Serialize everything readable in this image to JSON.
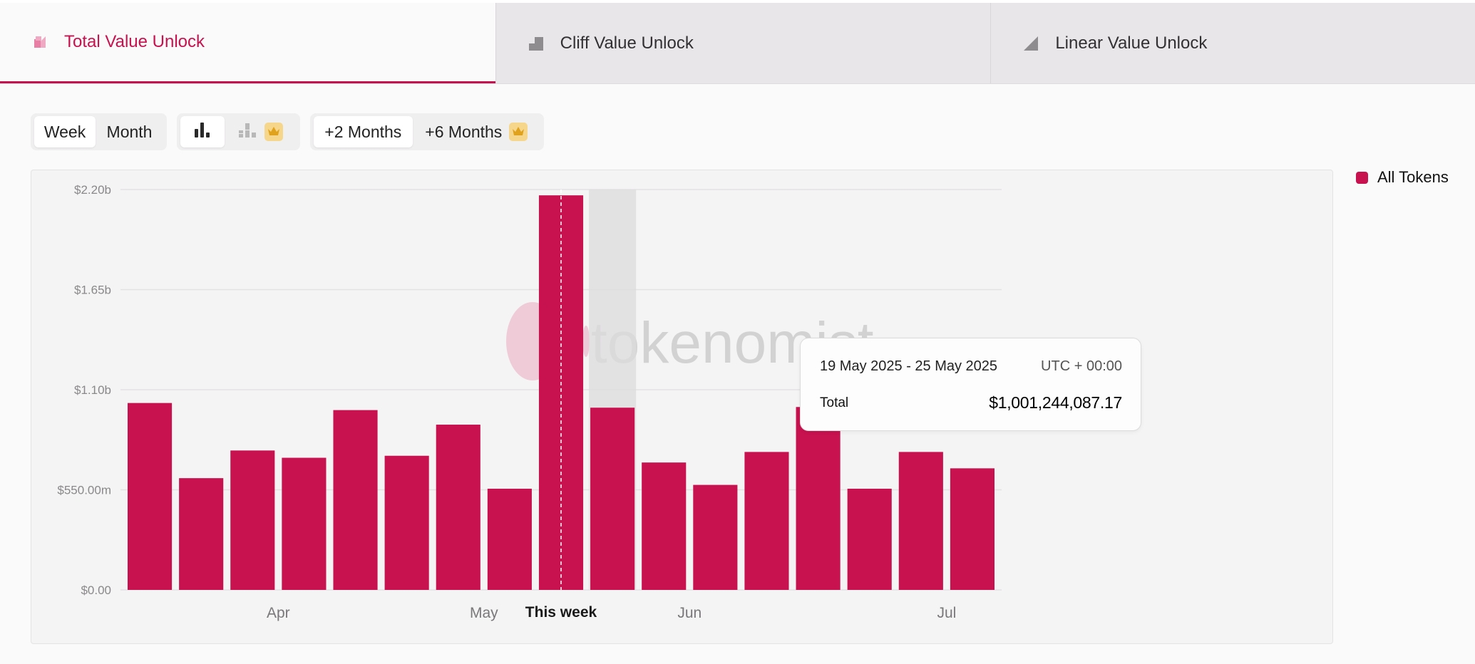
{
  "tabs": [
    {
      "label": "Total Value Unlock",
      "icon": "total-unlock-icon",
      "active": true
    },
    {
      "label": "Cliff Value Unlock",
      "icon": "cliff-unlock-icon",
      "active": false
    },
    {
      "label": "Linear Value Unlock",
      "icon": "linear-unlock-icon",
      "active": false
    }
  ],
  "controls": {
    "period": {
      "week": "Week",
      "month": "Month",
      "selected": "Week"
    },
    "view": {
      "bar_icon": "bar-chart-icon",
      "stacked_icon": "stacked-chart-icon",
      "selected": "bar"
    },
    "range": {
      "two_months": "+2 Months",
      "six_months": "+6 Months",
      "selected": "+2 Months"
    }
  },
  "colors": {
    "accent": "#c8114f",
    "premium": "#f5d68a"
  },
  "legend": {
    "label": "All Tokens"
  },
  "watermark": "tokenomist",
  "tooltip": {
    "range": "19 May 2025 - 25 May 2025",
    "timezone": "UTC + 00:00",
    "label": "Total",
    "value": "$1,001,244,087.17"
  },
  "chart_data": {
    "type": "bar",
    "unit": "USD",
    "ylim": [
      0,
      2200000000
    ],
    "yticks": [
      {
        "value": 0,
        "label": "$0.00"
      },
      {
        "value": 550000000,
        "label": "$550.00m"
      },
      {
        "value": 1100000000,
        "label": "$1.10b"
      },
      {
        "value": 1650000000,
        "label": "$1.65b"
      },
      {
        "value": 2200000000,
        "label": "$2.20b"
      }
    ],
    "bar_count": 17,
    "values": [
      1027000000,
      614000000,
      766000000,
      726000000,
      988000000,
      737000000,
      908000000,
      556000000,
      2168000000,
      1001244087.17,
      700000000,
      577000000,
      758000000,
      1005000000,
      556000000,
      758000000,
      668000000
    ],
    "x_labels": [
      {
        "bar_index": 2.5,
        "label": "Apr",
        "bold": false
      },
      {
        "bar_index": 6.5,
        "label": "May",
        "bold": false
      },
      {
        "bar_index": 8,
        "label": "This week",
        "bold": true
      },
      {
        "bar_index": 10.5,
        "label": "Jun",
        "bold": false
      },
      {
        "bar_index": 15.5,
        "label": "Jul",
        "bold": false
      }
    ],
    "current_index": 8,
    "hover_index": 9,
    "grid": true,
    "legend_position": "top-right",
    "series": [
      {
        "name": "All Tokens",
        "color": "#c8114f"
      }
    ]
  }
}
